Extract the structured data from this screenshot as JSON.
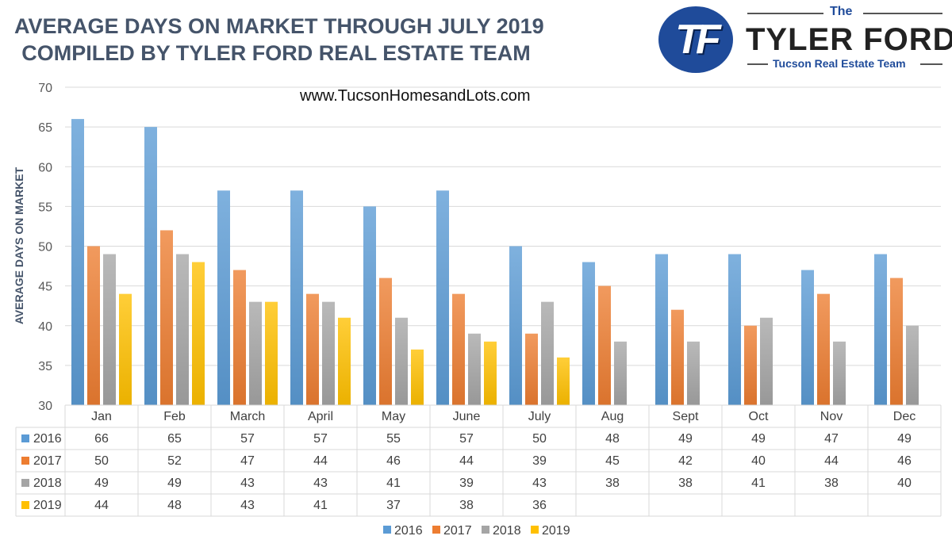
{
  "header": {
    "title_line1": "AVERAGE DAYS ON MARKET THROUGH JULY 2019",
    "title_line2": "COMPILED BY TYLER FORD REAL ESTATE TEAM",
    "website": "www.TucsonHomesandLots.com"
  },
  "logo": {
    "monogram": "TF",
    "the": "The",
    "name": "TYLER FORD",
    "tagline": "Tucson Real Estate Team"
  },
  "chart_data": {
    "type": "bar",
    "title": "AVERAGE DAYS ON MARKET THROUGH JULY 2019",
    "ylabel": "AVERAGE DAYS ON MARKET",
    "ylim": [
      30,
      70
    ],
    "yticks": [
      30,
      35,
      40,
      45,
      50,
      55,
      60,
      65,
      70
    ],
    "grid": true,
    "legend_position": "bottom",
    "data_table": true,
    "categories": [
      "Jan",
      "Feb",
      "March",
      "April",
      "May",
      "June",
      "July",
      "Aug",
      "Sept",
      "Oct",
      "Nov",
      "Dec"
    ],
    "series": [
      {
        "name": "2016",
        "color": "#5b9bd5",
        "values": [
          66,
          65,
          57,
          57,
          55,
          57,
          50,
          48,
          49,
          49,
          47,
          49
        ]
      },
      {
        "name": "2017",
        "color": "#ed7d31",
        "values": [
          50,
          52,
          47,
          44,
          46,
          44,
          39,
          45,
          42,
          40,
          44,
          46
        ]
      },
      {
        "name": "2018",
        "color": "#a5a5a5",
        "values": [
          49,
          49,
          43,
          43,
          41,
          39,
          43,
          38,
          38,
          41,
          38,
          40
        ]
      },
      {
        "name": "2019",
        "color": "#ffc000",
        "values": [
          44,
          48,
          43,
          41,
          37,
          38,
          36,
          null,
          null,
          null,
          null,
          null
        ]
      }
    ]
  }
}
